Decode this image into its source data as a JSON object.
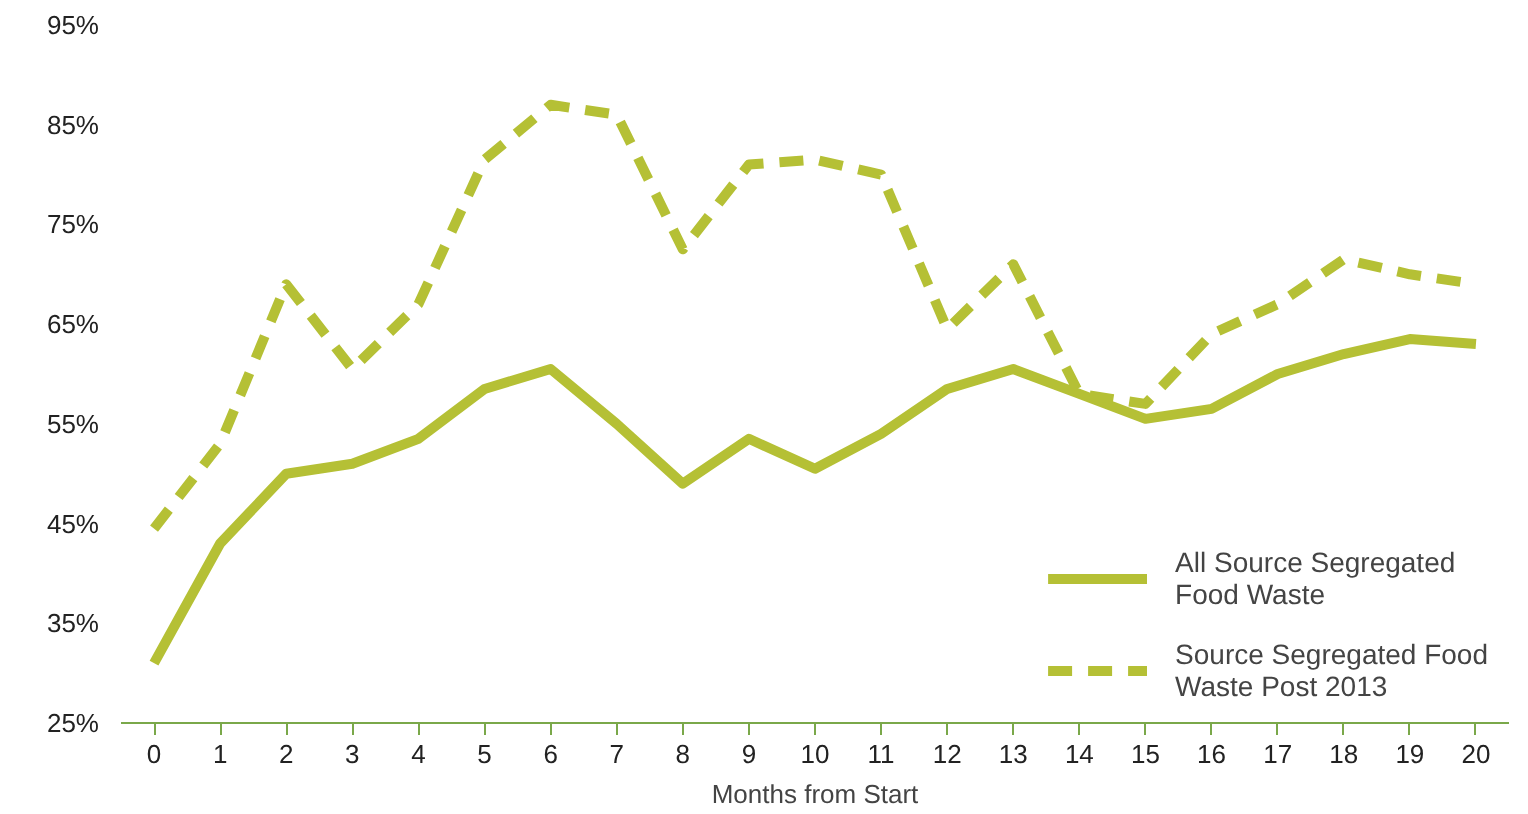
{
  "chart_data": {
    "type": "line",
    "xlabel": "Months from Start",
    "x": [
      0,
      1,
      2,
      3,
      4,
      5,
      6,
      7,
      8,
      9,
      10,
      11,
      12,
      13,
      14,
      15,
      16,
      17,
      18,
      19,
      20
    ],
    "xlim": [
      -0.5,
      20.5
    ],
    "xticks": [
      0,
      1,
      2,
      3,
      4,
      5,
      6,
      7,
      8,
      9,
      10,
      11,
      12,
      13,
      14,
      15,
      16,
      17,
      18,
      19,
      20
    ],
    "ylim": [
      25,
      95
    ],
    "yticks": [
      {
        "value": 25,
        "label": "25%"
      },
      {
        "value": 35,
        "label": "35%"
      },
      {
        "value": 45,
        "label": "45%"
      },
      {
        "value": 55,
        "label": "55%"
      },
      {
        "value": 65,
        "label": "65%"
      },
      {
        "value": 75,
        "label": "75%"
      },
      {
        "value": 85,
        "label": "85%"
      },
      {
        "value": 95,
        "label": "95%"
      }
    ],
    "grid": false,
    "legend": "bottom right",
    "series": [
      {
        "name": "All Source Segregated Food Waste",
        "color": "#b5c035",
        "line_style": "solid",
        "values": [
          31,
          43,
          50,
          51,
          53.5,
          58.5,
          60.5,
          55,
          49,
          53.5,
          50.5,
          54,
          58.5,
          60.5,
          58,
          55.5,
          56.5,
          60,
          62,
          63.5,
          63
        ]
      },
      {
        "name": "Source Segregated Food Waste Post 2013",
        "color": "#b5c035",
        "line_style": "dashed",
        "values": [
          44.5,
          53,
          69,
          60.5,
          67,
          81.5,
          87,
          86,
          72.5,
          81,
          81.5,
          80,
          64.5,
          71,
          58,
          57,
          64,
          67,
          71.5,
          70,
          69
        ]
      }
    ]
  }
}
